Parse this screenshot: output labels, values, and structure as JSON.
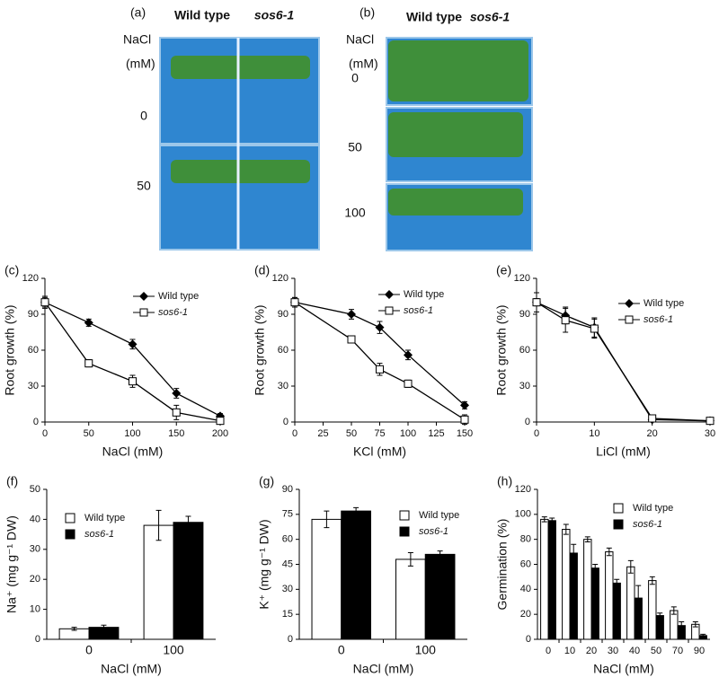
{
  "photos": [
    {
      "label": "(a)",
      "columns": [
        "Wild type",
        "sos6-1"
      ],
      "row_header": "NaCl",
      "unit": "(mM)",
      "rows": [
        "0",
        "50"
      ]
    },
    {
      "label": "(b)",
      "columns": [
        "Wild type",
        "sos6-1"
      ],
      "row_header": "NaCl",
      "unit": "(mM)",
      "rows": [
        "0",
        "50",
        "100"
      ]
    }
  ],
  "chart_data": [
    {
      "type": "line",
      "label": "(c)",
      "x_label": "NaCl (mM)",
      "y_label": "Root growth (%)",
      "x": [
        0,
        50,
        100,
        150,
        200
      ],
      "xlim": [
        0,
        200
      ],
      "xticks": [
        0,
        50,
        100,
        150,
        200
      ],
      "ylim": [
        0,
        120
      ],
      "yticks": [
        0,
        30,
        60,
        90,
        120
      ],
      "series": [
        {
          "name": "Wild type",
          "color": "#000000",
          "marker": "diamond",
          "values": [
            100,
            83,
            65,
            24,
            5
          ],
          "errors": [
            4,
            3,
            4,
            4,
            2
          ]
        },
        {
          "name": "sos6-1",
          "color": "#000000",
          "marker": "open-square",
          "values": [
            100,
            49,
            34,
            8,
            1
          ],
          "errors": [
            5,
            3,
            5,
            6,
            2
          ]
        }
      ]
    },
    {
      "type": "line",
      "label": "(d)",
      "x_label": "KCl (mM)",
      "y_label": "Root growth (%)",
      "x": [
        0,
        50,
        75,
        100,
        150
      ],
      "xlim": [
        0,
        150
      ],
      "xticks": [
        0,
        25,
        50,
        75,
        100,
        125,
        150
      ],
      "ylim": [
        0,
        120
      ],
      "yticks": [
        0,
        30,
        60,
        90,
        120
      ],
      "series": [
        {
          "name": "Wild type",
          "color": "#000000",
          "marker": "diamond",
          "values": [
            100,
            90,
            79,
            56,
            14
          ],
          "errors": [
            4,
            4,
            5,
            4,
            3
          ]
        },
        {
          "name": "sos6-1",
          "color": "#000000",
          "marker": "open-square",
          "values": [
            100,
            69,
            44,
            32,
            2
          ],
          "errors": [
            4,
            3,
            5,
            3,
            4
          ]
        }
      ]
    },
    {
      "type": "line",
      "label": "(e)",
      "x_label": "LiCl (mM)",
      "y_label": "Root growth (%)",
      "x": [
        0,
        5,
        10,
        20,
        30
      ],
      "xlim": [
        0,
        30
      ],
      "xticks": [
        0,
        10,
        20,
        30
      ],
      "ylim": [
        0,
        120
      ],
      "yticks": [
        0,
        30,
        60,
        90,
        120
      ],
      "series": [
        {
          "name": "Wild type",
          "color": "#000000",
          "marker": "diamond",
          "values": [
            100,
            89,
            79,
            2,
            1
          ],
          "errors": [
            8,
            7,
            8,
            2,
            1
          ]
        },
        {
          "name": "sos6-1",
          "color": "#000000",
          "marker": "open-square",
          "values": [
            100,
            85,
            78,
            3,
            1
          ],
          "errors": [
            3,
            10,
            8,
            2,
            1
          ]
        }
      ]
    },
    {
      "type": "bar",
      "label": "(f)",
      "x_label": "NaCl (mM)",
      "y_label": "Na⁺ (mg g⁻¹ DW)",
      "categories": [
        "0",
        "100"
      ],
      "ylim": [
        0,
        50
      ],
      "yticks": [
        0,
        10,
        20,
        30,
        40,
        50
      ],
      "series": [
        {
          "name": "Wild type",
          "color": "#ffffff",
          "values": [
            3.5,
            38
          ],
          "errors": [
            0.5,
            5
          ]
        },
        {
          "name": "sos6-1",
          "color": "#000000",
          "values": [
            4,
            39
          ],
          "errors": [
            0.7,
            2
          ]
        }
      ]
    },
    {
      "type": "bar",
      "label": "(g)",
      "x_label": "NaCl (mM)",
      "y_label": "K⁺ (mg g⁻¹ DW)",
      "categories": [
        "0",
        "100"
      ],
      "ylim": [
        0,
        90
      ],
      "yticks": [
        0,
        15,
        30,
        45,
        60,
        75,
        90
      ],
      "series": [
        {
          "name": "Wild type",
          "color": "#ffffff",
          "values": [
            72,
            48
          ],
          "errors": [
            5,
            4
          ]
        },
        {
          "name": "sos6-1",
          "color": "#000000",
          "values": [
            77,
            51
          ],
          "errors": [
            2,
            2
          ]
        }
      ]
    },
    {
      "type": "bar",
      "label": "(h)",
      "x_label": "NaCl (mM)",
      "y_label": "Germination (%)",
      "categories": [
        "0",
        "10",
        "20",
        "30",
        "40",
        "50",
        "70",
        "90"
      ],
      "ylim": [
        0,
        120
      ],
      "yticks": [
        0,
        20,
        40,
        60,
        80,
        100,
        120
      ],
      "series": [
        {
          "name": "Wild type",
          "color": "#ffffff",
          "values": [
            96,
            88,
            80,
            70,
            58,
            47,
            23,
            12
          ],
          "errors": [
            2,
            4,
            2,
            3,
            5,
            3,
            3,
            2
          ]
        },
        {
          "name": "sos6-1",
          "color": "#000000",
          "values": [
            95,
            69,
            57,
            45,
            33,
            19,
            11,
            3
          ],
          "errors": [
            2,
            7,
            3,
            3,
            10,
            2,
            3,
            1
          ]
        }
      ]
    }
  ]
}
